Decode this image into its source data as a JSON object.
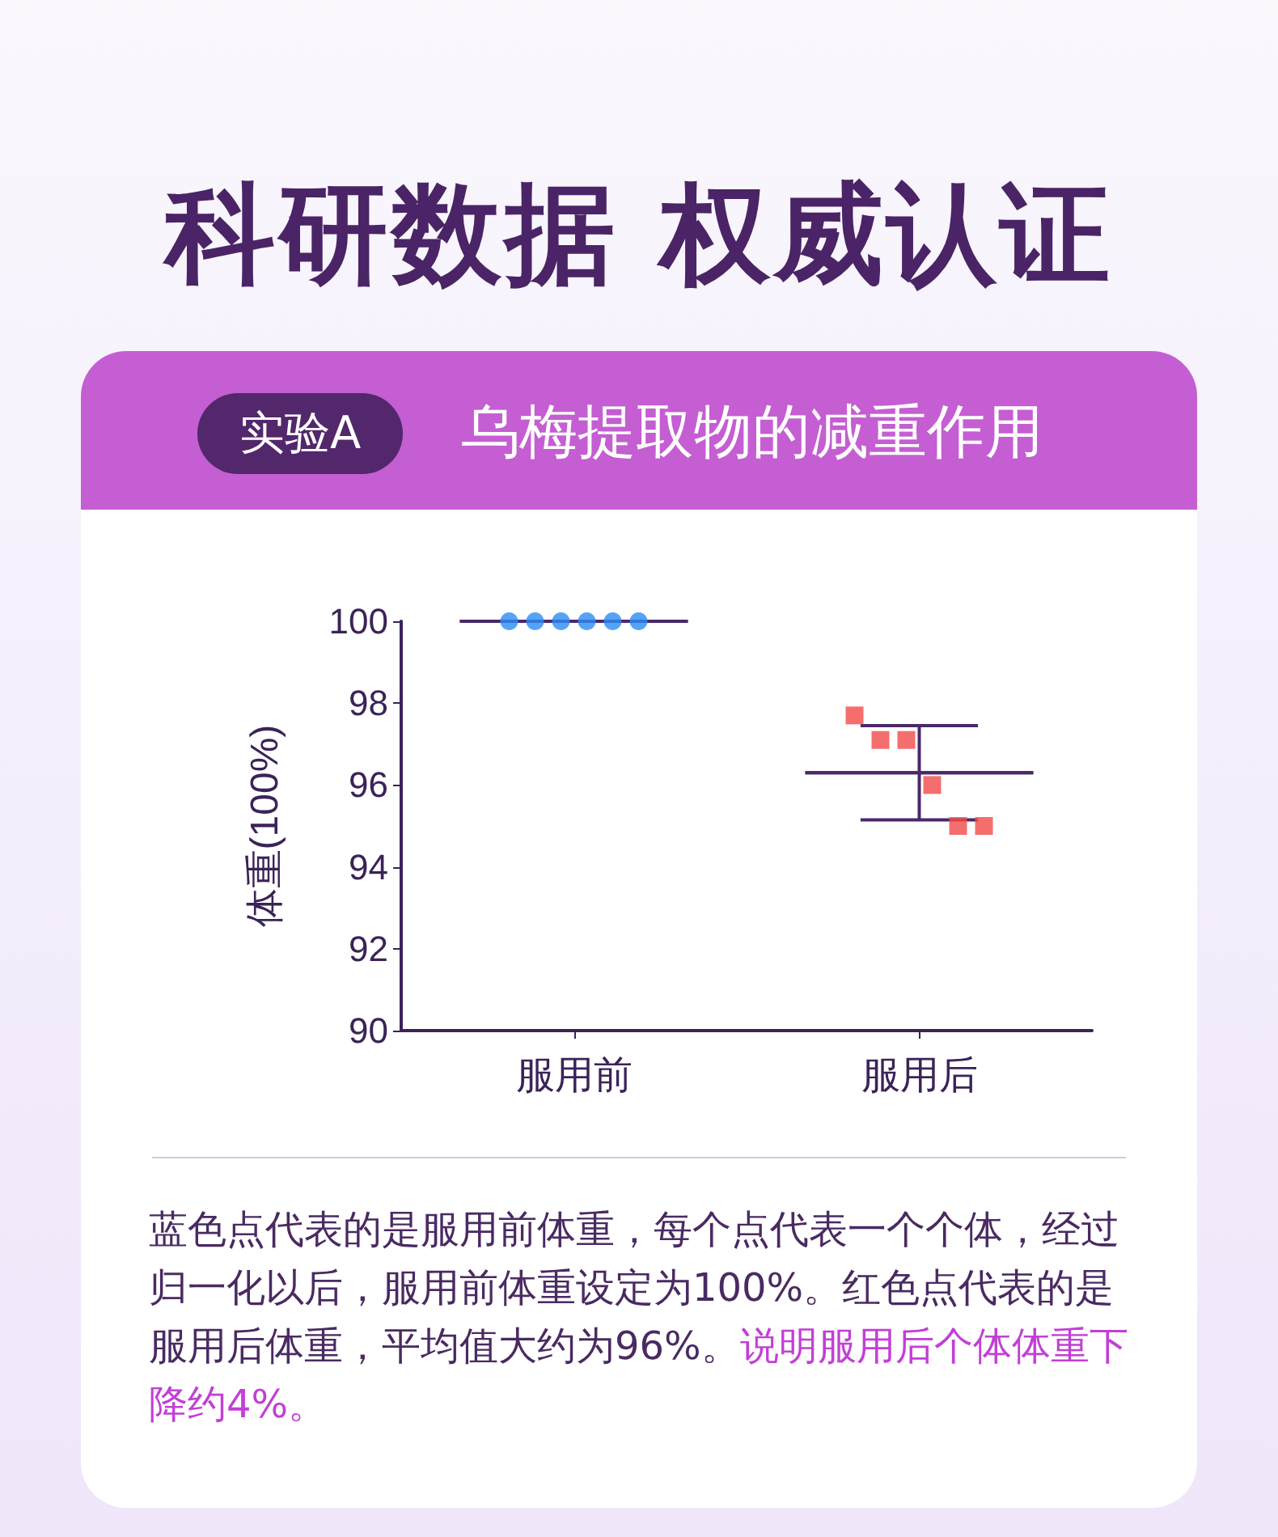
{
  "chart_data": {
    "type": "scatter",
    "title": "科研数据 权威认证",
    "subtitle": "乌梅提取物的减重作用",
    "ylabel": "体重(100%)",
    "categories": [
      "服用前",
      "服用后"
    ],
    "series": [
      {
        "marker": "circle",
        "color": "#2a8cf5",
        "x": [
          "服用前",
          "服用前",
          "服用前",
          "服用前",
          "服用前",
          "服用前"
        ],
        "values": [
          100,
          100,
          100,
          100,
          100,
          100
        ]
      },
      {
        "marker": "square",
        "color": "#f24a4a",
        "x": [
          "服用后",
          "服用后",
          "服用后",
          "服用后",
          "服用后",
          "服用后"
        ],
        "values": [
          97.7,
          97.1,
          97.1,
          96.0,
          95.0,
          95.0
        ]
      },
      {
        "type": "box",
        "color": "#4a2869",
        "boxes": [
          {
            "low": 100,
            "q1": 100,
            "median": 100,
            "q3": 100,
            "high": 100
          },
          {
            "low": 95.15,
            "q1": 96.3,
            "median": 96.3,
            "q3": 96.3,
            "high": 97.45
          }
        ]
      }
    ],
    "ylim": [
      90,
      100
    ],
    "yticks": [
      90,
      92,
      94,
      96,
      98,
      100
    ],
    "grid": false,
    "annotations": [
      "实验A",
      "蓝色点代表的是服用前体重，每个点代表一个个体，经过归一化以后，服用前体重设定为100%。红色点代表的是服用后体重，平均值大约为96%。",
      "说明服用后个体体重下降约4%。"
    ]
  }
}
